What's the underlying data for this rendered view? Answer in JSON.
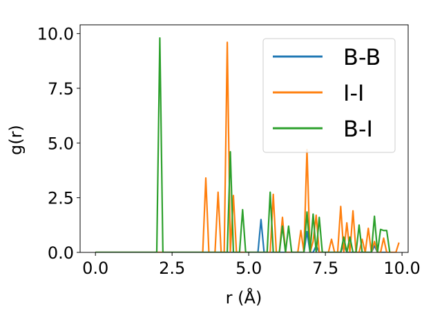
{
  "chart_data": {
    "type": "line",
    "xlabel": "r (Å)",
    "ylabel": "g(r)",
    "xlim": [
      -0.5,
      10.2
    ],
    "ylim": [
      0,
      10.4
    ],
    "x_ticks": [
      0.0,
      2.5,
      5.0,
      7.5,
      10.0
    ],
    "x_tick_labels": [
      "0.0",
      "2.5",
      "5.0",
      "7.5",
      "10.0"
    ],
    "y_ticks": [
      0.0,
      2.5,
      5.0,
      7.5,
      10.0
    ],
    "y_tick_labels": [
      "0.0",
      "2.5",
      "5.0",
      "7.5",
      "10.0"
    ],
    "grid": false,
    "legend_position": "top-right",
    "series": [
      {
        "name": "B-B",
        "color": "#1f77b4",
        "x": [
          0.0,
          5.3,
          5.4,
          5.5,
          6.8,
          6.9,
          7.0,
          7.1,
          7.2,
          7.3,
          7.4,
          8.0,
          8.1,
          8.2,
          8.3,
          9.0,
          9.1,
          9.2,
          9.5
        ],
        "y": [
          0.0,
          0.0,
          1.5,
          0.0,
          0.0,
          0.95,
          0.0,
          0.0,
          0.3,
          0.0,
          0.0,
          0.0,
          0.4,
          0.0,
          0.0,
          0.0,
          0.3,
          0.0,
          0.0
        ]
      },
      {
        "name": "I-I",
        "color": "#ff7f0e",
        "x": [
          0.0,
          3.5,
          3.6,
          3.7,
          3.9,
          4.0,
          4.1,
          4.2,
          4.3,
          4.4,
          4.5,
          4.6,
          5.5,
          5.6,
          5.7,
          5.8,
          5.9,
          6.0,
          6.1,
          6.2,
          6.6,
          6.7,
          6.8,
          6.9,
          7.0,
          7.1,
          7.2,
          7.3,
          7.4,
          7.6,
          7.7,
          7.8,
          7.9,
          8.0,
          8.1,
          8.2,
          8.3,
          8.4,
          8.5,
          8.6,
          8.7,
          8.8,
          8.9,
          9.0,
          9.1,
          9.2,
          9.3,
          9.4,
          9.5,
          9.6,
          9.7,
          9.8,
          9.9
        ],
        "y": [
          0.0,
          0.0,
          3.4,
          0.0,
          0.0,
          2.75,
          0.0,
          0.0,
          9.6,
          0.0,
          2.6,
          0.0,
          0.0,
          0.0,
          0.0,
          2.65,
          0.0,
          0.0,
          1.6,
          0.0,
          0.0,
          1.0,
          0.0,
          4.7,
          0.0,
          0.5,
          1.7,
          0.0,
          0.0,
          0.0,
          0.6,
          0.0,
          0.0,
          2.1,
          0.0,
          1.35,
          0.0,
          1.9,
          0.0,
          0.0,
          0.6,
          0.0,
          1.1,
          0.0,
          0.5,
          0.0,
          0.0,
          0.65,
          0.0,
          0.0,
          0.0,
          0.0,
          0.45
        ]
      },
      {
        "name": "B-I",
        "color": "#2ca02c",
        "x": [
          0.0,
          2.0,
          2.1,
          2.2,
          4.3,
          4.4,
          4.5,
          4.7,
          4.8,
          4.9,
          5.6,
          5.7,
          5.8,
          5.9,
          6.0,
          6.1,
          6.2,
          6.3,
          6.4,
          6.5,
          6.8,
          6.9,
          7.0,
          7.1,
          7.2,
          7.3,
          7.4,
          7.5,
          8.0,
          8.1,
          8.2,
          8.3,
          8.4,
          8.5,
          8.6,
          8.7,
          8.8,
          8.9,
          9.0,
          9.1,
          9.2,
          9.3,
          9.4,
          9.5,
          9.6
        ],
        "y": [
          0.0,
          0.0,
          9.8,
          0.0,
          0.0,
          4.6,
          0.0,
          0.0,
          1.95,
          0.0,
          0.0,
          2.75,
          0.0,
          0.0,
          0.0,
          1.2,
          0.0,
          1.2,
          0.0,
          0.0,
          0.0,
          1.85,
          0.0,
          1.75,
          0.0,
          1.6,
          0.0,
          0.0,
          0.0,
          0.7,
          0.0,
          0.7,
          0.0,
          0.0,
          1.25,
          0.0,
          0.0,
          0.0,
          0.0,
          1.65,
          0.0,
          1.05,
          1.0,
          1.0,
          0.0
        ]
      }
    ]
  }
}
